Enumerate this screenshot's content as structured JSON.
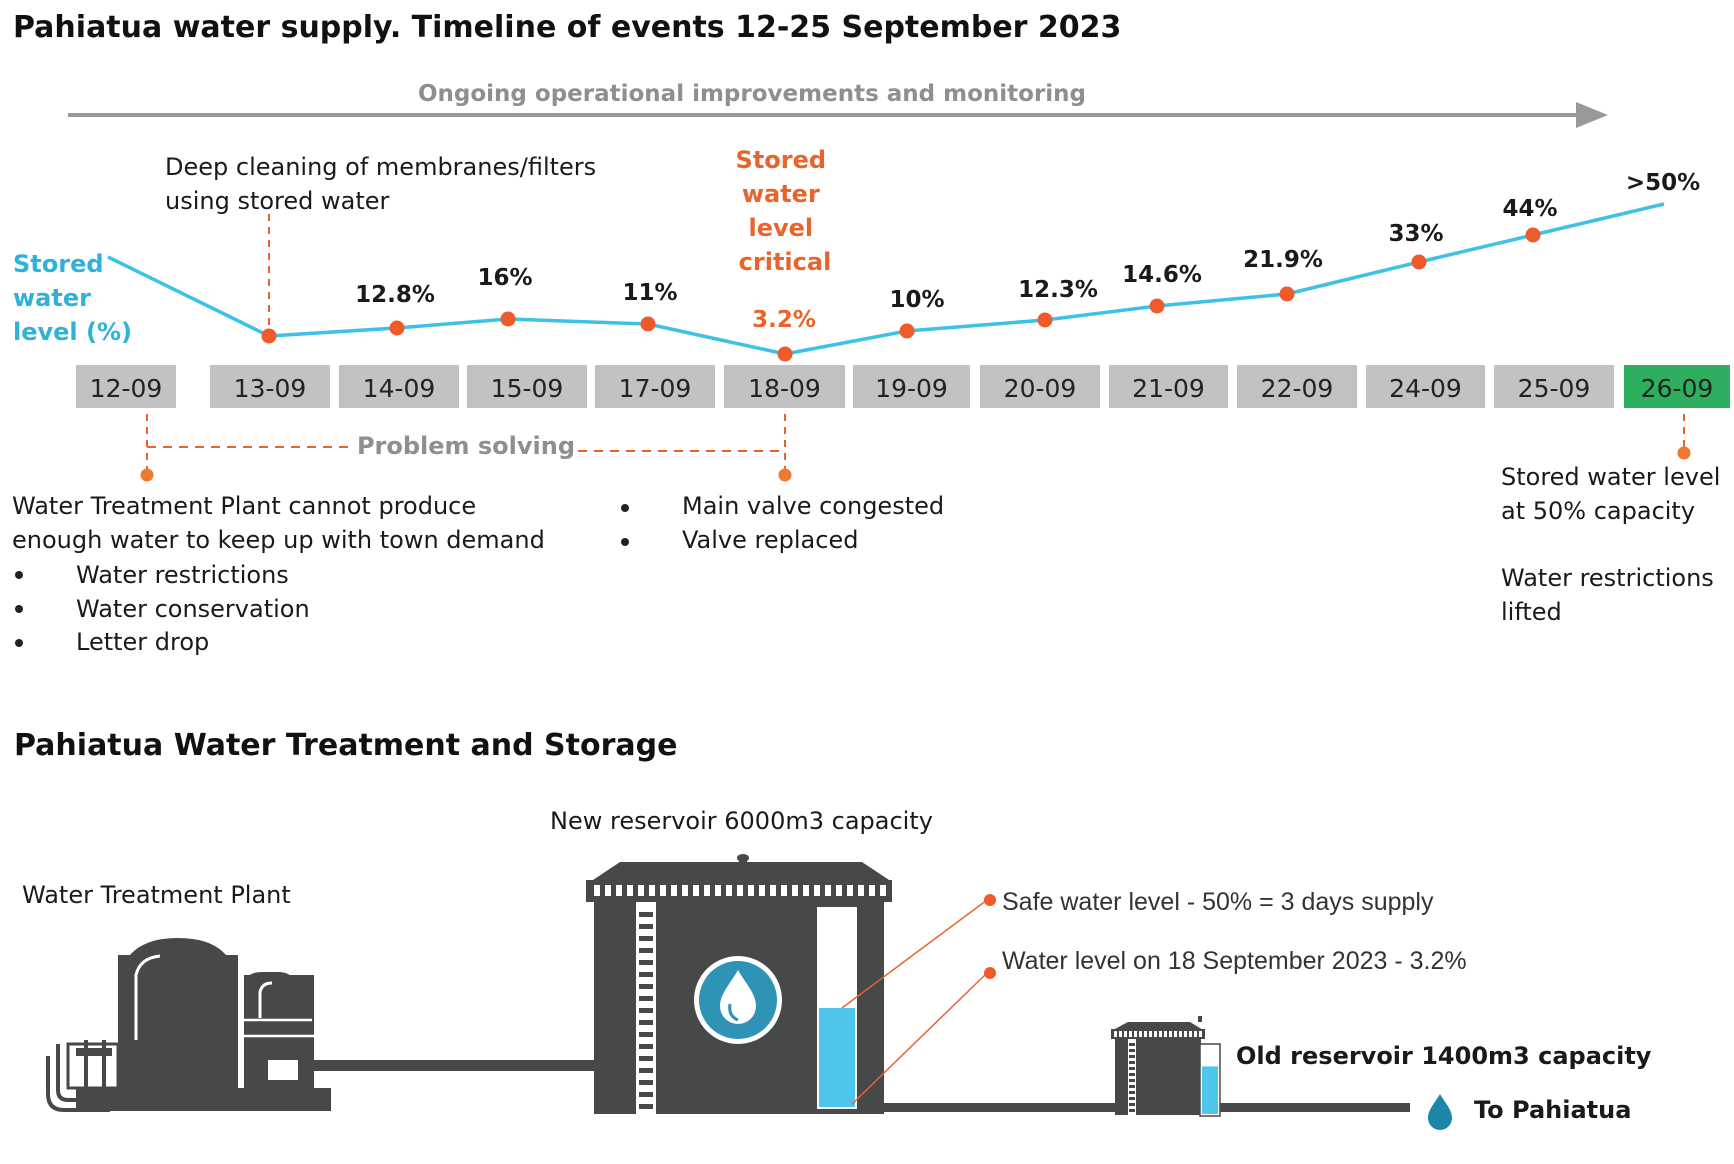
{
  "title": "Pahiatua water supply. Timeline of events 12-25 September 2023",
  "banner": "Ongoing operational improvements and monitoring",
  "stored_label": [
    "Stored",
    "water",
    "level (%)"
  ],
  "annotations": {
    "deep_cleaning": [
      "Deep cleaning of membranes/filters",
      "using stored water"
    ],
    "critical": [
      "Stored",
      "water",
      "level",
      "critical"
    ],
    "problem_solving": "Problem solving",
    "wtp_cannot": [
      "Water Treatment Plant cannot produce",
      "enough water to keep up with town demand"
    ],
    "wtp_bullets": [
      "Water restrictions",
      "Water conservation",
      "Letter drop"
    ],
    "valve_bullets": [
      "Main valve congested",
      "Valve replaced"
    ],
    "final": [
      "Stored water level",
      "at 50% capacity",
      "",
      "Water restrictions",
      "lifted"
    ]
  },
  "chart_data": {
    "type": "line",
    "dates": [
      "12-09",
      "13-09",
      "14-09",
      "15-09",
      "17-09",
      "18-09",
      "19-09",
      "20-09",
      "21-09",
      "22-09",
      "24-09",
      "25-09",
      "26-09"
    ],
    "value_labels": [
      "",
      "",
      "12.8%",
      "16%",
      "11%",
      "3.2%",
      "10%",
      "12.3%",
      "14.6%",
      "21.9%",
      "33%",
      "44%",
      ">50%"
    ],
    "y_title": "Stored water level (%)",
    "highlight_date": "26-09",
    "critical_date": "18-09"
  },
  "diagram": {
    "title": "Pahiatua Water Treatment and Storage",
    "plant_label": "Water Treatment Plant",
    "new_reservoir_label": "New reservoir 6000m3 capacity",
    "safe_level": "Safe water level - 50% = 3 days supply",
    "level_18sep": "Water level on 18 September 2023 - 3.2%",
    "old_reservoir_label": "Old reservoir 1400m3 capacity",
    "to_town": "To Pahiatua",
    "new_fill_fraction": 0.5,
    "old_fill_fraction": 0.7
  },
  "colors": {
    "line": "#3ec1e6",
    "marker": "#ee5a2a",
    "orange_text": "#e8642c",
    "date_box": "#c2c2c4",
    "highlight_box": "#2daf5f",
    "dark": "#47484a",
    "water": "#4ec6ec"
  }
}
